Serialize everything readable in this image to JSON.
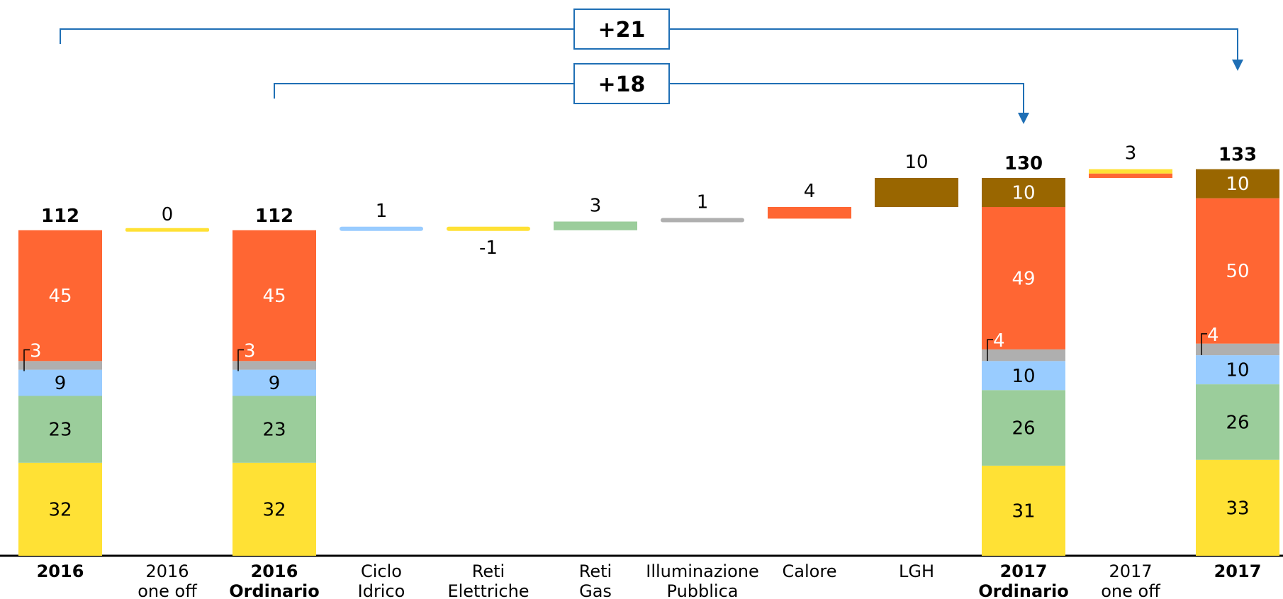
{
  "chart_data": {
    "type": "bar",
    "subtype": "waterfall-stacked",
    "categories": [
      {
        "lines": [
          "2016"
        ],
        "bold": true
      },
      {
        "lines": [
          "2016",
          "one off"
        ],
        "bold": false
      },
      {
        "lines": [
          "2016",
          "Ordinario"
        ],
        "bold": true
      },
      {
        "lines": [
          "Ciclo",
          "Idrico"
        ],
        "bold": false
      },
      {
        "lines": [
          "Reti",
          "Elettriche"
        ],
        "bold": false
      },
      {
        "lines": [
          "Reti",
          "Gas"
        ],
        "bold": false
      },
      {
        "lines": [
          "Illuminazione",
          "Pubblica"
        ],
        "bold": false
      },
      {
        "lines": [
          "Calore"
        ],
        "bold": false
      },
      {
        "lines": [
          "LGH"
        ],
        "bold": false
      },
      {
        "lines": [
          "2017",
          "Ordinario"
        ],
        "bold": true
      },
      {
        "lines": [
          "2017",
          "one off"
        ],
        "bold": false
      },
      {
        "lines": [
          "2017"
        ],
        "bold": true
      }
    ],
    "segment_colors": {
      "yellow": "#FFE135",
      "green": "#9BCD9B",
      "blue": "#99CCFF",
      "gray": "#AFAFAF",
      "orange": "#FF6633",
      "brown": "#996600"
    },
    "stacked_bars": [
      {
        "index": 0,
        "total": "112",
        "segments": [
          {
            "value": 32,
            "color": "yellow",
            "label": "32"
          },
          {
            "value": 23,
            "color": "green",
            "label": "23"
          },
          {
            "value": 9,
            "color": "blue",
            "label": "9"
          },
          {
            "value": 3,
            "color": "gray",
            "label": "3",
            "callout": true
          },
          {
            "value": 45,
            "color": "orange",
            "label": "45"
          }
        ]
      },
      {
        "index": 2,
        "total": "112",
        "segments": [
          {
            "value": 32,
            "color": "yellow",
            "label": "32"
          },
          {
            "value": 23,
            "color": "green",
            "label": "23"
          },
          {
            "value": 9,
            "color": "blue",
            "label": "9"
          },
          {
            "value": 3,
            "color": "gray",
            "label": "3",
            "callout": true
          },
          {
            "value": 45,
            "color": "orange",
            "label": "45"
          }
        ]
      },
      {
        "index": 9,
        "total": "130",
        "segments": [
          {
            "value": 31,
            "color": "yellow",
            "label": "31"
          },
          {
            "value": 26,
            "color": "green",
            "label": "26"
          },
          {
            "value": 10,
            "color": "blue",
            "label": "10"
          },
          {
            "value": 4,
            "color": "gray",
            "label": "4",
            "callout": true
          },
          {
            "value": 49,
            "color": "orange",
            "label": "49"
          },
          {
            "value": 10,
            "color": "brown",
            "label": "10"
          }
        ]
      },
      {
        "index": 11,
        "total": "133",
        "segments": [
          {
            "value": 33,
            "color": "yellow",
            "label": "33"
          },
          {
            "value": 26,
            "color": "green",
            "label": "26"
          },
          {
            "value": 10,
            "color": "blue",
            "label": "10"
          },
          {
            "value": 4,
            "color": "gray",
            "label": "4",
            "callout": true
          },
          {
            "value": 50,
            "color": "orange",
            "label": "50"
          },
          {
            "value": 10,
            "color": "brown",
            "label": "10"
          }
        ]
      }
    ],
    "delta_bars": [
      {
        "index": 1,
        "value": 0,
        "label": "0",
        "base": 112,
        "colors": [
          "yellow"
        ]
      },
      {
        "index": 3,
        "value": 1,
        "label": "1",
        "base": 112,
        "colors": [
          "blue"
        ]
      },
      {
        "index": 4,
        "value": -1,
        "label": "-1",
        "base": 113,
        "colors": [
          "yellow"
        ]
      },
      {
        "index": 5,
        "value": 3,
        "label": "3",
        "base": 112,
        "colors": [
          "green"
        ]
      },
      {
        "index": 6,
        "value": 1,
        "label": "1",
        "base": 115,
        "colors": [
          "gray"
        ]
      },
      {
        "index": 7,
        "value": 4,
        "label": "4",
        "base": 116,
        "colors": [
          "orange"
        ]
      },
      {
        "index": 8,
        "value": 10,
        "label": "10",
        "base": 120,
        "colors": [
          "brown"
        ]
      },
      {
        "index": 10,
        "value": 3,
        "label": "3",
        "base": 130,
        "colors": [
          "yellow",
          "orange"
        ]
      }
    ],
    "brackets": [
      {
        "label": "+21",
        "from_index": 0,
        "to_index": 11
      },
      {
        "label": "+18",
        "from_index": 2,
        "to_index": 9
      }
    ],
    "ylim": [
      0,
      138
    ],
    "bracket_color": "#1F6FB5"
  }
}
